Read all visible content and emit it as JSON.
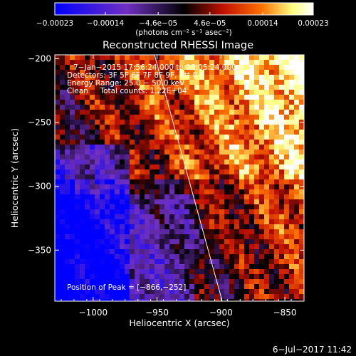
{
  "chart_data": {
    "type": "heatmap",
    "title": "Reconstructed RHESSI Image",
    "xlabel": "Heliocentric X (arcsec)",
    "ylabel": "Heliocentric Y (arcsec)",
    "xlim": [
      -1030,
      -835
    ],
    "ylim": [
      -390,
      -197
    ],
    "x_ticks": [
      -1000,
      -950,
      -900,
      -850
    ],
    "y_ticks": [
      -200,
      -250,
      -300,
      -350
    ],
    "x_tick_labels": [
      "−1000",
      "−950",
      "−900",
      "−850"
    ],
    "y_tick_labels": [
      "−200",
      "−250",
      "−300",
      "−350"
    ],
    "colorbar": {
      "range": [
        -0.00023,
        0.00023
      ],
      "tick_values": [
        -0.00023,
        -0.00014,
        -4.6e-05,
        4.6e-05,
        0.00014,
        0.00023
      ],
      "tick_labels": [
        "−0.00023",
        "−0.00014",
        "−4.6e−05",
        "4.6e−05",
        "0.00014",
        "0.00023"
      ],
      "unit_label": "(photons cm⁻² s⁻¹ asec⁻²)",
      "colors": [
        "#0000ff",
        "#7030c0",
        "#000000",
        "#c01000",
        "#ff7000",
        "#ffff80",
        "#ffffff"
      ]
    },
    "annotations": {
      "time": "7−Jan−2015 17:56:24.000 to 18:05:24.000",
      "detectors": "Detectors: 3F 5F 6F 7F 8F 9F, Att 0",
      "energy": "Energy Range: 25.0 − 50.0 keV",
      "clean": "Clean     Total counts: 1.22E+04",
      "peak": "Position of Peak = [−866,−252]"
    },
    "peak": {
      "x": -866,
      "y": -252
    },
    "limb_line": [
      [
        -952,
        -197
      ],
      [
        -899,
        -390
      ]
    ],
    "footer_date": "6−Jul−2017 11:42"
  }
}
